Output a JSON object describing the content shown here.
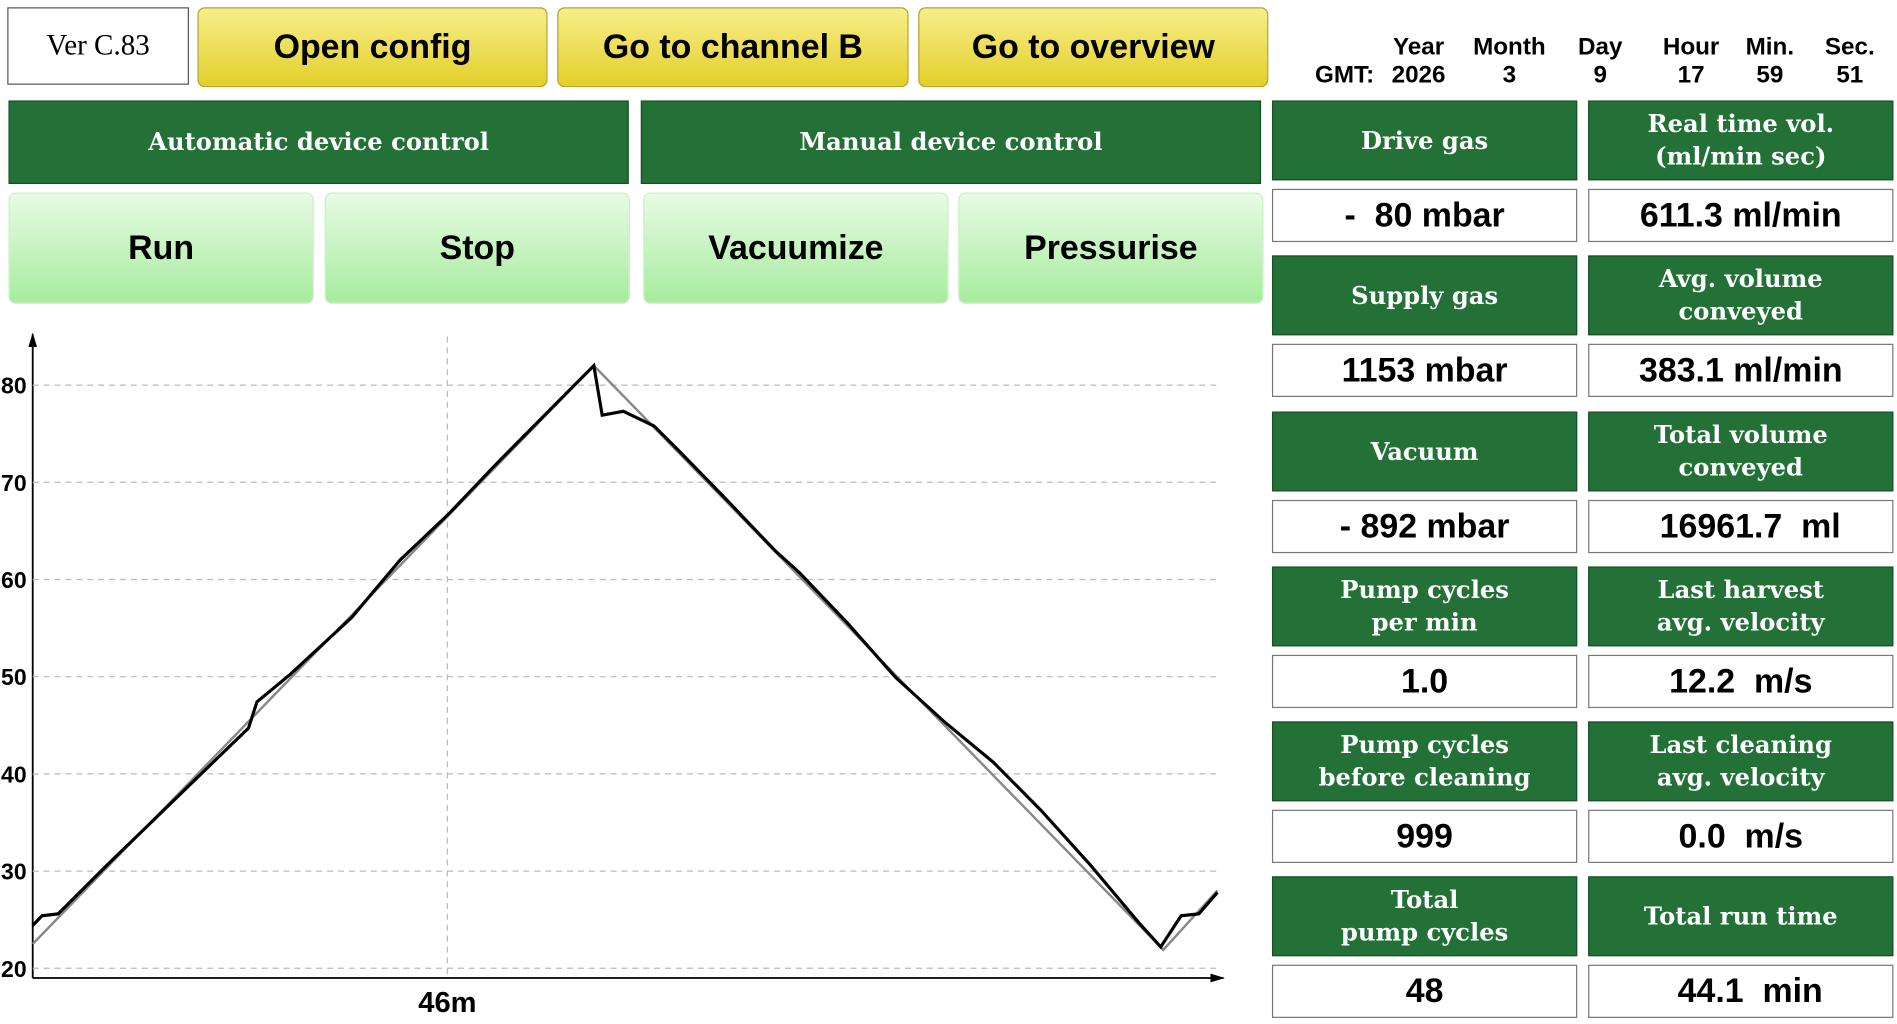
{
  "version": "Ver C.83",
  "nav_buttons": [
    "Open config",
    "Go to channel B",
    "Go to overview"
  ],
  "gmt": {
    "label": "GMT:",
    "columns": [
      {
        "label": "Year",
        "value": "2026"
      },
      {
        "label": "Month",
        "value": "3"
      },
      {
        "label": "Day",
        "value": "9"
      },
      {
        "label": "Hour",
        "value": "17"
      },
      {
        "label": "Min.",
        "value": "59"
      },
      {
        "label": "Sec.",
        "value": "51"
      }
    ]
  },
  "control_headers": [
    "Automatic device control",
    "Manual device control"
  ],
  "control_buttons": [
    "Run",
    "Stop",
    "Vacuumize",
    "Pressurise"
  ],
  "panels": [
    {
      "label": "Drive gas",
      "value": "-  80 mbar"
    },
    {
      "label": "Real time vol.\n(ml/min sec)",
      "value": "611.3 ml/min"
    },
    {
      "label": "Supply gas",
      "value": "1153 mbar"
    },
    {
      "label": "Avg. volume\nconveyed",
      "value": "383.1 ml/min"
    },
    {
      "label": "Vacuum",
      "value": "- 892 mbar"
    },
    {
      "label": "Total volume\nconveyed",
      "value": "  16961.7  ml"
    },
    {
      "label": "Pump cycles\nper min",
      "value": "1.0"
    },
    {
      "label": "Last harvest\navg. velocity",
      "value": "12.2  m/s"
    },
    {
      "label": "Pump cycles\nbefore cleaning",
      "value": "999"
    },
    {
      "label": "Last cleaning\navg. velocity",
      "value": "0.0  m/s"
    },
    {
      "label": "Total\npump cycles",
      "value": "48"
    },
    {
      "label": "Total run time",
      "value": "  44.1  min"
    }
  ],
  "chart_data": {
    "type": "line",
    "xlim": [
      41.1,
      55.1
    ],
    "xticks": [
      {
        "value": 46,
        "label": "46m"
      }
    ],
    "ylim": [
      19,
      85
    ],
    "yticks": [
      20,
      30,
      40,
      50,
      60,
      70,
      80
    ],
    "grid": true,
    "series": [
      {
        "color": "#888888",
        "x": [
          41.1,
          47.73,
          54.46,
          55.1
        ],
        "values": [
          22.5,
          82,
          21.9,
          28
        ]
      },
      {
        "color": "#000000",
        "x": [
          41.1,
          41.21,
          41.4,
          42.0,
          42.57,
          43.15,
          43.65,
          43.75,
          44.15,
          44.87,
          45.44,
          46.01,
          46.58,
          47.15,
          47.73,
          47.83,
          48.08,
          48.44,
          48.73,
          49.3,
          49.87,
          50.16,
          50.73,
          51.3,
          51.88,
          52.45,
          53.02,
          53.6,
          54.17,
          54.43,
          54.67,
          54.88,
          55.1
        ],
        "values": [
          24.4,
          25.4,
          25.6,
          30.8,
          35.6,
          40.5,
          44.7,
          47.4,
          50.3,
          56.1,
          62.0,
          66.7,
          71.9,
          76.9,
          82.0,
          76.9,
          77.3,
          75.8,
          73.3,
          68.2,
          63.0,
          60.7,
          55.5,
          49.9,
          45.3,
          41.2,
          36.2,
          30.6,
          24.7,
          22.2,
          25.4,
          25.6,
          27.8
        ]
      }
    ]
  }
}
